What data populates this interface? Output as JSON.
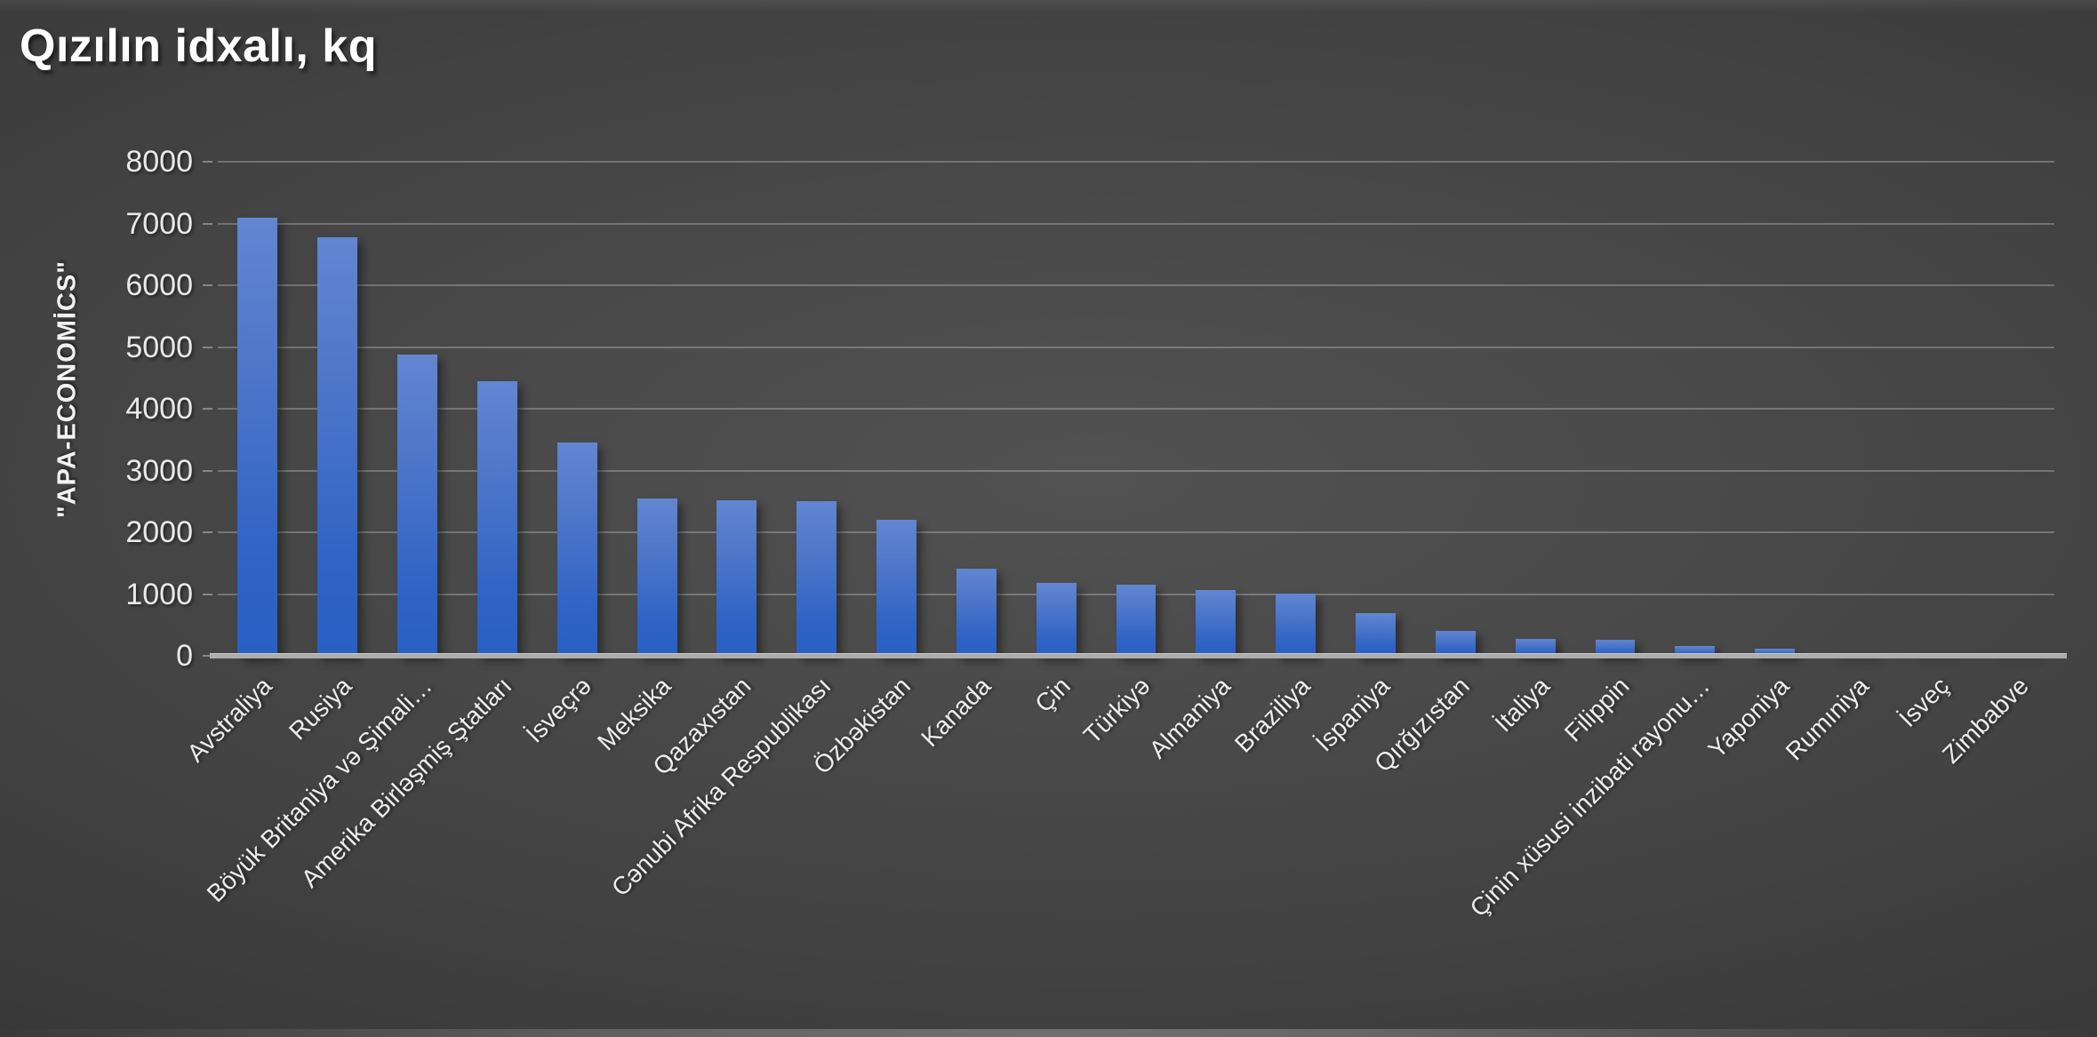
{
  "title": "Qızılın idxalı, kq",
  "source_label": "\"APA-ECONOMİCS\"",
  "colors": {
    "bar_top": "#6286d1",
    "bar_bottom": "#2a60c4",
    "background_center": "#525252",
    "background_edge": "#242424",
    "axis_line": "#adadad",
    "gridline": "rgba(216,216,216,0.32)",
    "text": "#ededed"
  },
  "chart_data": {
    "type": "bar",
    "title": "Qızılın idxalı, kq",
    "xlabel": "",
    "ylabel": "\"APA-ECONOMİCS\"",
    "ylim": [
      0,
      8000
    ],
    "ytick_interval": 1000,
    "yticks": [
      0,
      1000,
      2000,
      3000,
      4000,
      5000,
      6000,
      7000,
      8000
    ],
    "grid": true,
    "legend": false,
    "categories": [
      "Avstraliya",
      "Rusiya",
      "Böyük Britaniya və Şimali…",
      "Amerika Birləşmiş Ştatları",
      "İsveçrə",
      "Meksika",
      "Qazaxıstan",
      "Cənubi Afrika Respublikası",
      "Özbəkistan",
      "Kanada",
      "Çin",
      "Türkiyə",
      "Almaniya",
      "Braziliya",
      "İspaniya",
      "Qırğızıstan",
      "İtaliya",
      "Filippin",
      "Çinin xüsusi inzibati rayonu…",
      "Yaponiya",
      "Rumıniya",
      "İsveç",
      "Zimbabve"
    ],
    "values": [
      7100,
      6780,
      4880,
      4450,
      3450,
      2540,
      2520,
      2500,
      2200,
      1410,
      1180,
      1150,
      1060,
      1010,
      690,
      410,
      280,
      255,
      165,
      120,
      40,
      20,
      10
    ]
  }
}
